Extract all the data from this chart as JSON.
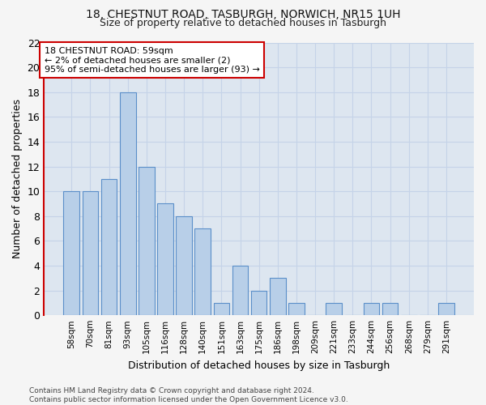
{
  "title1": "18, CHESTNUT ROAD, TASBURGH, NORWICH, NR15 1UH",
  "title2": "Size of property relative to detached houses in Tasburgh",
  "xlabel": "Distribution of detached houses by size in Tasburgh",
  "ylabel": "Number of detached properties",
  "categories": [
    "58sqm",
    "70sqm",
    "81sqm",
    "93sqm",
    "105sqm",
    "116sqm",
    "128sqm",
    "140sqm",
    "151sqm",
    "163sqm",
    "175sqm",
    "186sqm",
    "198sqm",
    "209sqm",
    "221sqm",
    "233sqm",
    "244sqm",
    "256sqm",
    "268sqm",
    "279sqm",
    "291sqm"
  ],
  "values": [
    10,
    10,
    11,
    18,
    12,
    9,
    8,
    7,
    1,
    4,
    2,
    3,
    1,
    0,
    1,
    0,
    1,
    1,
    0,
    0,
    1
  ],
  "bar_color": "#b8cfe8",
  "bar_edge_color": "#5b8fc9",
  "annotation_line1": "18 CHESTNUT ROAD: 59sqm",
  "annotation_line2": "← 2% of detached houses are smaller (2)",
  "annotation_line3": "95% of semi-detached houses are larger (93) →",
  "annotation_box_facecolor": "#ffffff",
  "annotation_box_edgecolor": "#cc0000",
  "ylim_max": 22,
  "yticks": [
    0,
    2,
    4,
    6,
    8,
    10,
    12,
    14,
    16,
    18,
    20,
    22
  ],
  "footnote": "Contains HM Land Registry data © Crown copyright and database right 2024.\nContains public sector information licensed under the Open Government Licence v3.0.",
  "grid_color": "#c5d3e8",
  "background_color": "#dde6f0",
  "fig_background": "#f5f5f5",
  "spine_left_color": "#cc0000"
}
